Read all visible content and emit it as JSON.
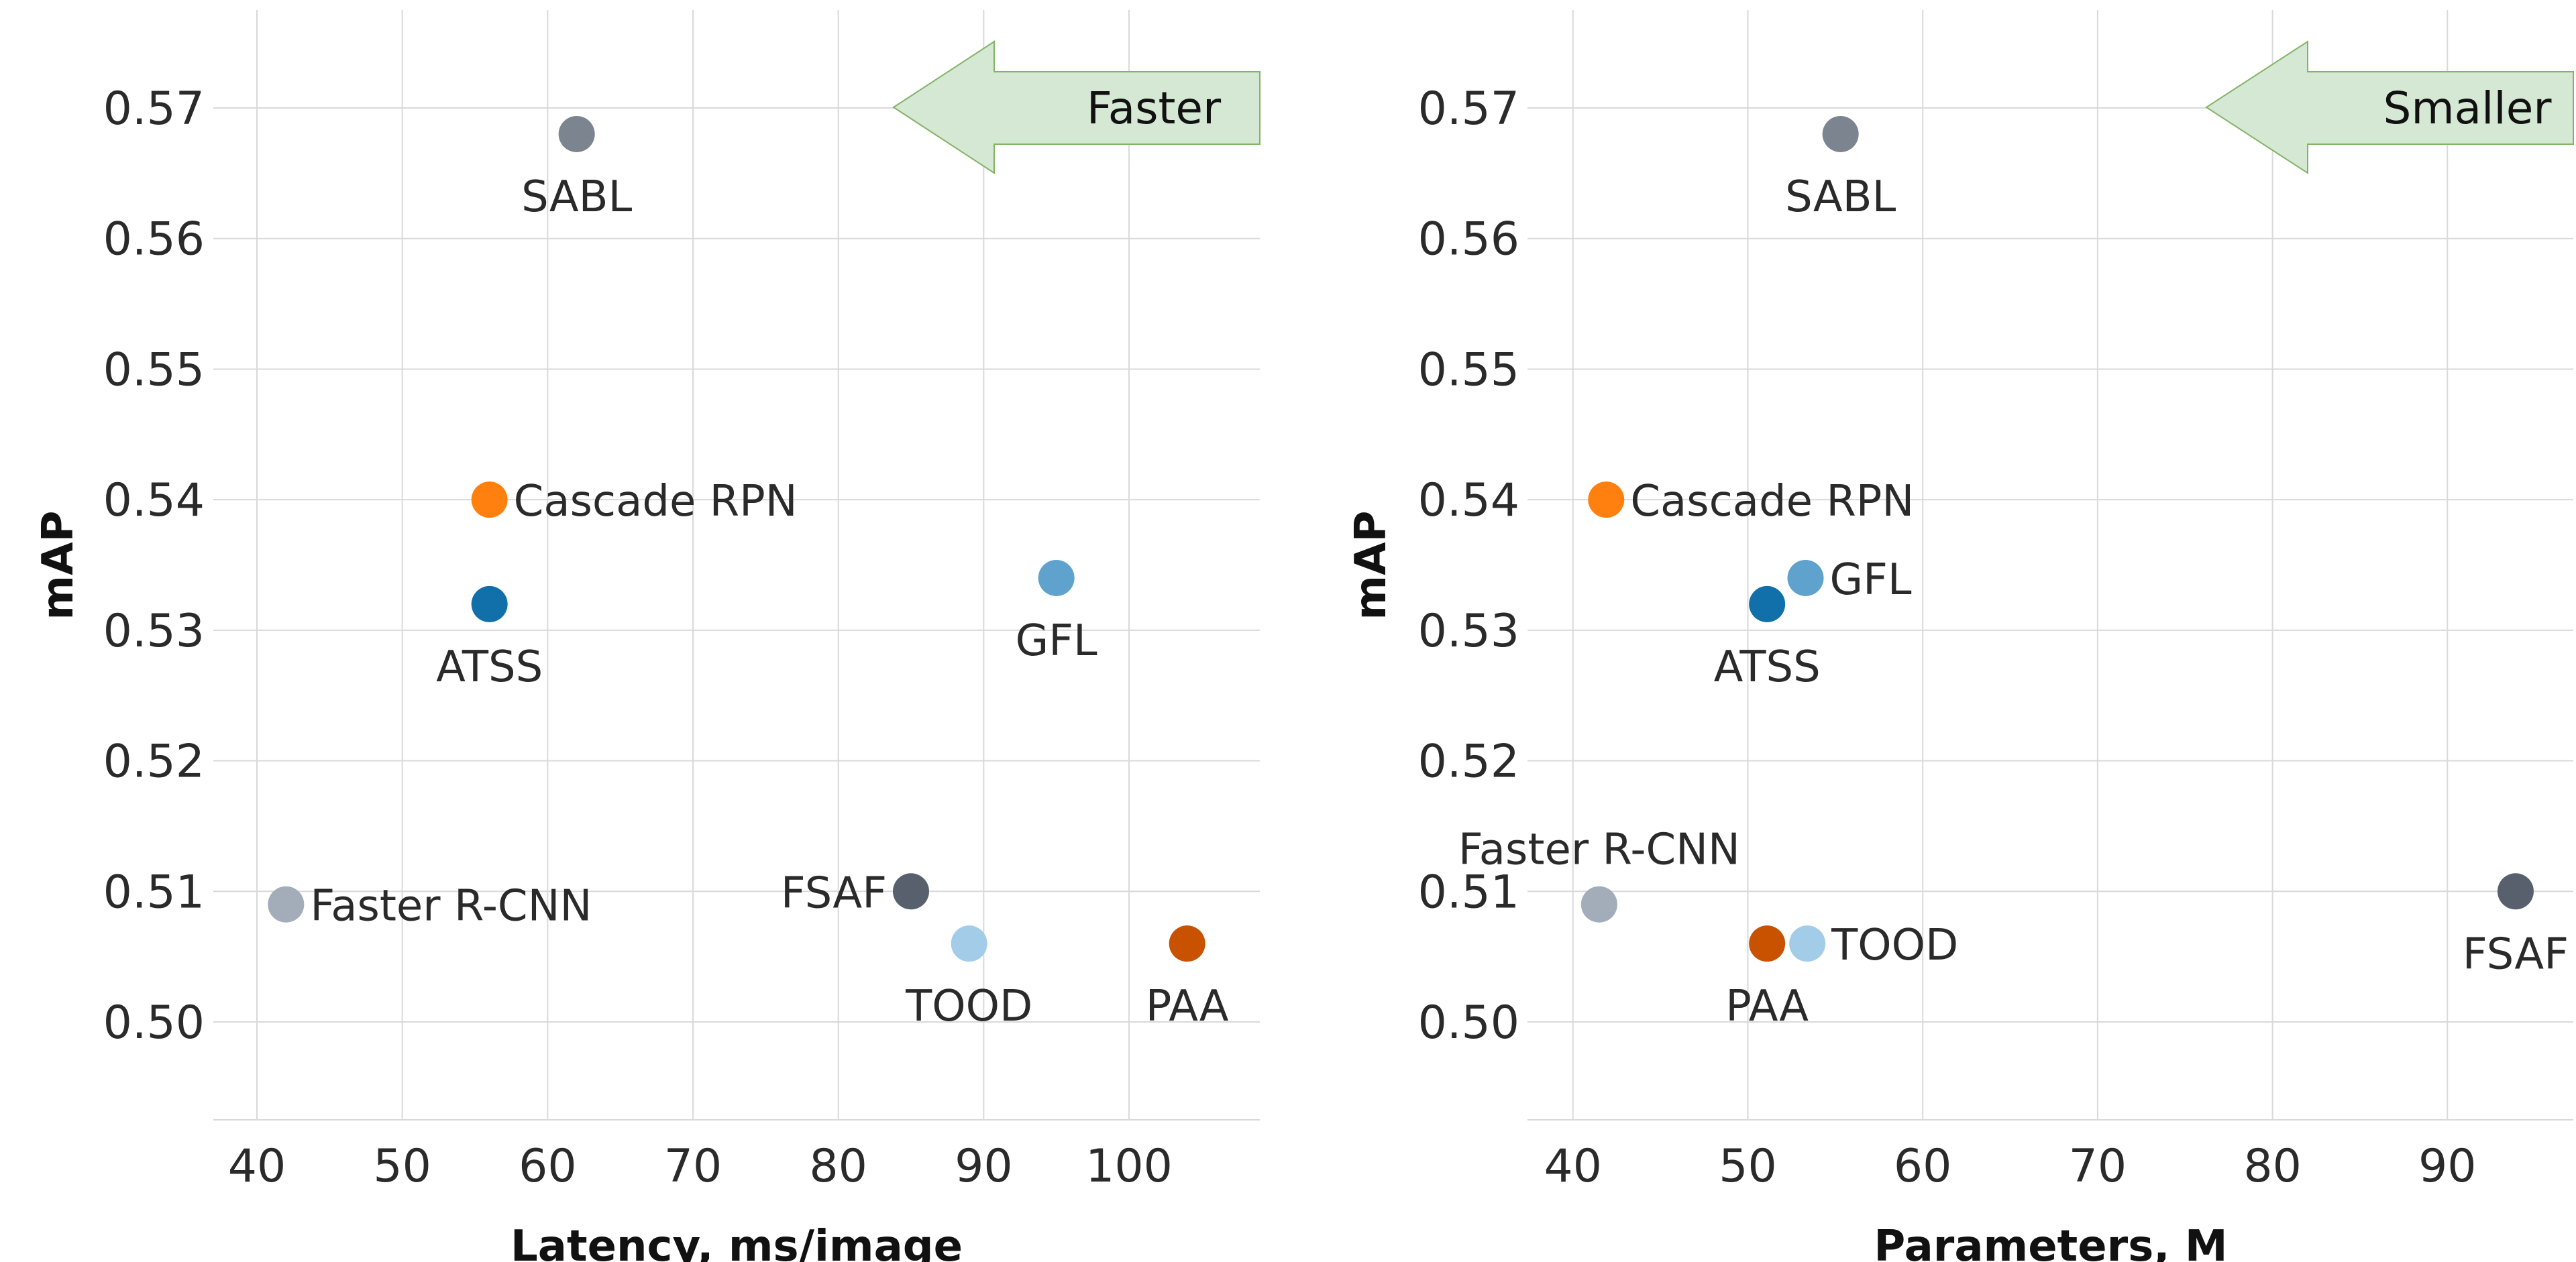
{
  "chart_data": [
    {
      "type": "scatter",
      "xlabel": "Latency, ms/image",
      "ylabel": "mAP",
      "xlim": [
        37,
        109
      ],
      "ylim": [
        0.4925,
        0.5775
      ],
      "xticks": [
        40,
        50,
        60,
        70,
        80,
        90,
        100
      ],
      "xtick_labels": [
        "40",
        "50",
        "60",
        "70",
        "80",
        "90",
        "100"
      ],
      "yticks": [
        0.5,
        0.51,
        0.52,
        0.53,
        0.54,
        0.55,
        0.56,
        0.57
      ],
      "ytick_labels": [
        "0.50",
        "0.51",
        "0.52",
        "0.53",
        "0.54",
        "0.55",
        "0.56",
        "0.57"
      ],
      "grid": true,
      "annotation": {
        "text": "Faster",
        "type": "left-arrow",
        "color": "#d5e8d4",
        "border": "#82b366"
      },
      "points": [
        {
          "name": "SABL",
          "x": 62,
          "y": 0.568,
          "color": "#7b848f"
        },
        {
          "name": "Cascade RPN",
          "x": 56,
          "y": 0.54,
          "color": "#ff800e"
        },
        {
          "name": "ATSS",
          "x": 56,
          "y": 0.532,
          "color": "#1170aa"
        },
        {
          "name": "GFL",
          "x": 95,
          "y": 0.534,
          "color": "#5fa2ce"
        },
        {
          "name": "Faster R-CNN",
          "x": 42,
          "y": 0.509,
          "color": "#a3acb9"
        },
        {
          "name": "FSAF",
          "x": 85,
          "y": 0.51,
          "color": "#57606c"
        },
        {
          "name": "TOOD",
          "x": 89,
          "y": 0.506,
          "color": "#a3cce9"
        },
        {
          "name": "PAA",
          "x": 104,
          "y": 0.506,
          "color": "#c85200"
        }
      ]
    },
    {
      "type": "scatter",
      "xlabel": "Parameters, M",
      "ylabel": "mAP",
      "xlim": [
        37.4,
        97.2
      ],
      "ylim": [
        0.4925,
        0.5775
      ],
      "xticks": [
        40,
        50,
        60,
        70,
        80,
        90
      ],
      "xtick_labels": [
        "40",
        "50",
        "60",
        "70",
        "80",
        "90"
      ],
      "yticks": [
        0.5,
        0.51,
        0.52,
        0.53,
        0.54,
        0.55,
        0.56,
        0.57
      ],
      "ytick_labels": [
        "0.50",
        "0.51",
        "0.52",
        "0.53",
        "0.54",
        "0.55",
        "0.56",
        "0.57"
      ],
      "grid": true,
      "annotation": {
        "text": "Smaller",
        "type": "left-arrow",
        "color": "#d5e8d4",
        "border": "#82b366"
      },
      "points": [
        {
          "name": "SABL",
          "x": 55.3,
          "y": 0.568,
          "color": "#7b848f"
        },
        {
          "name": "Cascade RPN",
          "x": 41.9,
          "y": 0.54,
          "color": "#ff800e"
        },
        {
          "name": "GFL",
          "x": 53.3,
          "y": 0.534,
          "color": "#5fa2ce"
        },
        {
          "name": "ATSS",
          "x": 51.1,
          "y": 0.532,
          "color": "#1170aa"
        },
        {
          "name": "Faster R-CNN",
          "x": 41.5,
          "y": 0.509,
          "color": "#a3acb9"
        },
        {
          "name": "FSAF",
          "x": 93.9,
          "y": 0.51,
          "color": "#57606c"
        },
        {
          "name": "PAA",
          "x": 51.1,
          "y": 0.506,
          "color": "#c85200"
        },
        {
          "name": "TOOD",
          "x": 53.4,
          "y": 0.506,
          "color": "#a3cce9"
        }
      ]
    }
  ]
}
